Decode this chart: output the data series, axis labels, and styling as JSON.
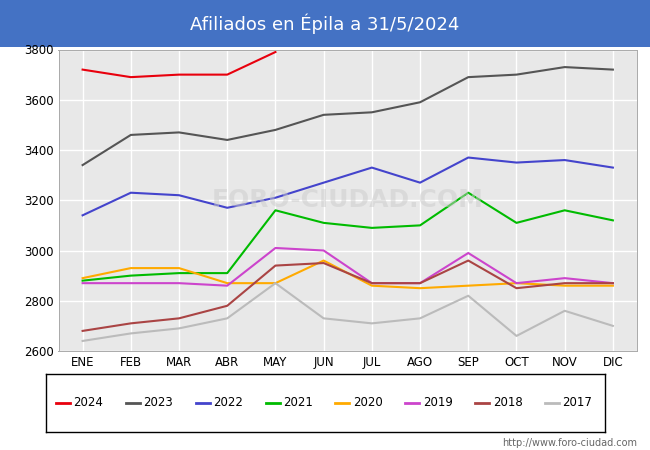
{
  "title": "Afiliados en Épila a 31/5/2024",
  "title_bg_color": "#4472c4",
  "title_text_color": "white",
  "ylim": [
    2600,
    3800
  ],
  "yticks": [
    2600,
    2800,
    3000,
    3200,
    3400,
    3600,
    3800
  ],
  "months": [
    "ENE",
    "FEB",
    "MAR",
    "ABR",
    "MAY",
    "JUN",
    "JUL",
    "AGO",
    "SEP",
    "OCT",
    "NOV",
    "DIC"
  ],
  "footnote": "http://www.foro-ciudad.com",
  "series": {
    "2024": {
      "color": "#e8000d",
      "data": [
        3720,
        3690,
        3700,
        3700,
        3790,
        null,
        null,
        null,
        null,
        null,
        null,
        null
      ]
    },
    "2023": {
      "color": "#555555",
      "data": [
        3340,
        3460,
        3470,
        3440,
        3480,
        3540,
        3550,
        3590,
        3690,
        3700,
        3730,
        3720
      ]
    },
    "2022": {
      "color": "#4444cc",
      "data": [
        3140,
        3230,
        3220,
        3170,
        3210,
        3270,
        3330,
        3270,
        3370,
        3350,
        3360,
        3330
      ]
    },
    "2021": {
      "color": "#00bb00",
      "data": [
        2880,
        2900,
        2910,
        2910,
        3160,
        3110,
        3090,
        3100,
        3230,
        3110,
        3160,
        3120
      ]
    },
    "2020": {
      "color": "#ffaa00",
      "data": [
        2890,
        2930,
        2930,
        2870,
        2870,
        2960,
        2860,
        2850,
        2860,
        2870,
        2860,
        2860
      ]
    },
    "2019": {
      "color": "#cc44cc",
      "data": [
        2870,
        2870,
        2870,
        2860,
        3010,
        3000,
        2870,
        2870,
        2990,
        2870,
        2890,
        2870
      ]
    },
    "2018": {
      "color": "#aa4444",
      "data": [
        2680,
        2710,
        2730,
        2780,
        2940,
        2950,
        2870,
        2870,
        2960,
        2850,
        2870,
        2870
      ]
    },
    "2017": {
      "color": "#bbbbbb",
      "data": [
        2640,
        2670,
        2690,
        2730,
        2870,
        2730,
        2710,
        2730,
        2820,
        2660,
        2760,
        2700
      ]
    }
  },
  "legend_order": [
    "2024",
    "2023",
    "2022",
    "2021",
    "2020",
    "2019",
    "2018",
    "2017"
  ],
  "plot_bg_color": "#e8e8e8",
  "grid_color": "white"
}
